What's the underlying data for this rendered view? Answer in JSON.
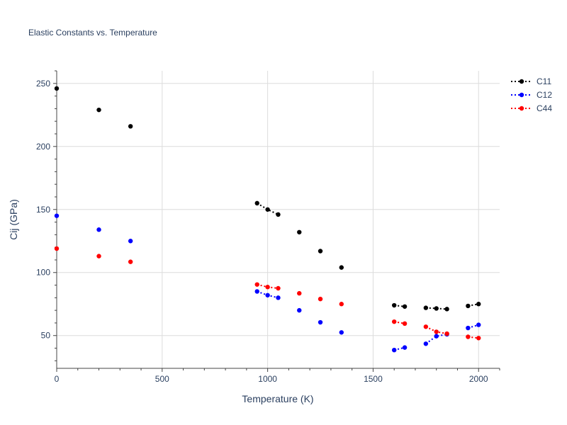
{
  "chart_data": {
    "type": "scatter",
    "title": "Elastic Constants vs. Temperature",
    "xlabel": "Temperature (K)",
    "ylabel": "Cij (GPa)",
    "xlim": [
      0,
      2100
    ],
    "ylim": [
      24,
      260
    ],
    "xticks": [
      0,
      500,
      1000,
      1500,
      2000
    ],
    "yticks": [
      50,
      100,
      150,
      200,
      250
    ],
    "legend_position": "top-right",
    "series": [
      {
        "name": "C11",
        "color": "#000000",
        "points": [
          {
            "x": 0,
            "y": 246
          },
          {
            "x": 200,
            "y": 229
          },
          {
            "x": 350,
            "y": 216
          },
          {
            "x": 950,
            "y": 155
          },
          {
            "x": 1000,
            "y": 150
          },
          {
            "x": 1050,
            "y": 146
          },
          {
            "x": 1150,
            "y": 132
          },
          {
            "x": 1250,
            "y": 117
          },
          {
            "x": 1350,
            "y": 104
          },
          {
            "x": 1600,
            "y": 74
          },
          {
            "x": 1650,
            "y": 73
          },
          {
            "x": 1750,
            "y": 72
          },
          {
            "x": 1800,
            "y": 71.5
          },
          {
            "x": 1850,
            "y": 71
          },
          {
            "x": 1950,
            "y": 73.5
          },
          {
            "x": 2000,
            "y": 75
          }
        ],
        "connected": [
          [
            3,
            4,
            5
          ],
          [
            9,
            10
          ],
          [
            11,
            12,
            13
          ],
          [
            14,
            15
          ]
        ]
      },
      {
        "name": "C12",
        "color": "#0000ff",
        "points": [
          {
            "x": 0,
            "y": 145
          },
          {
            "x": 200,
            "y": 134
          },
          {
            "x": 350,
            "y": 125
          },
          {
            "x": 950,
            "y": 85
          },
          {
            "x": 1000,
            "y": 82
          },
          {
            "x": 1050,
            "y": 80
          },
          {
            "x": 1150,
            "y": 70
          },
          {
            "x": 1250,
            "y": 60.5
          },
          {
            "x": 1350,
            "y": 52.5
          },
          {
            "x": 1600,
            "y": 38.5
          },
          {
            "x": 1650,
            "y": 40.5
          },
          {
            "x": 1750,
            "y": 43.5
          },
          {
            "x": 1800,
            "y": 49.5
          },
          {
            "x": 1850,
            "y": 51
          },
          {
            "x": 1950,
            "y": 56
          },
          {
            "x": 2000,
            "y": 58.5
          }
        ],
        "connected": [
          [
            3,
            4,
            5
          ],
          [
            9,
            10
          ],
          [
            11,
            12,
            13
          ],
          [
            14,
            15
          ]
        ]
      },
      {
        "name": "C44",
        "color": "#ff0000",
        "points": [
          {
            "x": 0,
            "y": 119
          },
          {
            "x": 200,
            "y": 113
          },
          {
            "x": 350,
            "y": 108.5
          },
          {
            "x": 950,
            "y": 90.5
          },
          {
            "x": 1000,
            "y": 88.5
          },
          {
            "x": 1050,
            "y": 87.5
          },
          {
            "x": 1150,
            "y": 83.5
          },
          {
            "x": 1250,
            "y": 79
          },
          {
            "x": 1350,
            "y": 75
          },
          {
            "x": 1600,
            "y": 61
          },
          {
            "x": 1650,
            "y": 59.5
          },
          {
            "x": 1750,
            "y": 57
          },
          {
            "x": 1800,
            "y": 53
          },
          {
            "x": 1850,
            "y": 51.5
          },
          {
            "x": 1950,
            "y": 49
          },
          {
            "x": 2000,
            "y": 48
          }
        ],
        "connected": [
          [
            3,
            4,
            5
          ],
          [
            9,
            10
          ],
          [
            11,
            12,
            13
          ],
          [
            14,
            15
          ]
        ]
      }
    ]
  }
}
